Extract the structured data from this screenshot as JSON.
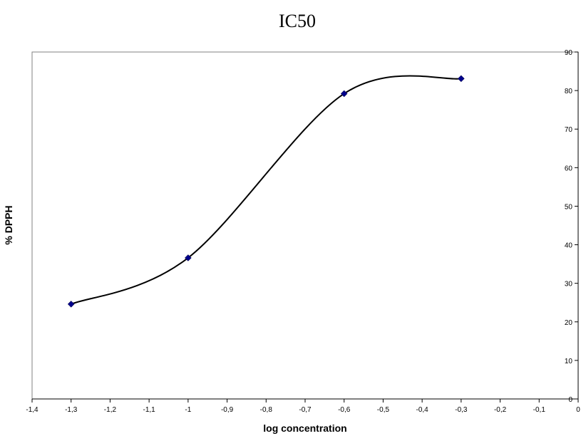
{
  "chart_data": {
    "type": "scatter",
    "title": "IC50",
    "xlabel": "log concentration",
    "ylabel": "% DPPH",
    "xlim": [
      -1.4,
      0
    ],
    "ylim": [
      0,
      90
    ],
    "x_ticks": [
      "-1,4",
      "-1,3",
      "-1,2",
      "-1,1",
      "-1",
      "-0,9",
      "-0,8",
      "-0,7",
      "-0,6",
      "-0,5",
      "-0,4",
      "-0,3",
      "-0,2",
      "-0,1",
      "0"
    ],
    "x_tick_values": [
      -1.4,
      -1.3,
      -1.2,
      -1.1,
      -1.0,
      -0.9,
      -0.8,
      -0.7,
      -0.6,
      -0.5,
      -0.4,
      -0.3,
      -0.2,
      -0.1,
      0
    ],
    "y_ticks": [
      "0",
      "10",
      "20",
      "30",
      "40",
      "50",
      "60",
      "70",
      "80",
      "90"
    ],
    "y_tick_values": [
      0,
      10,
      20,
      30,
      40,
      50,
      60,
      70,
      80,
      90
    ],
    "y_axis_side": "right",
    "grid": false,
    "smoothed_line": true,
    "series": [
      {
        "x": [
          -1.3,
          -1.0,
          -0.6,
          -0.3
        ],
        "y": [
          24.6,
          36.6,
          79.2,
          83.1
        ],
        "marker_color": "#00008B",
        "line_color": "#000000"
      }
    ]
  }
}
